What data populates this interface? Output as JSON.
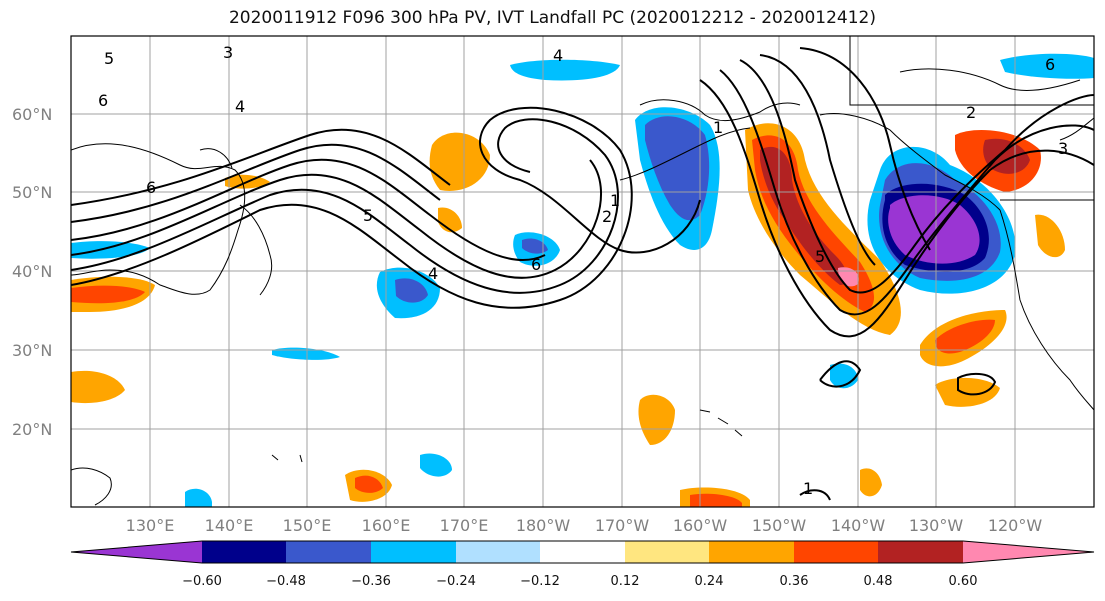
{
  "title": "2020011912 F096 300 hPa PV, IVT Landfall PC (2020012212 - 2020012412)",
  "lat_labels": [
    "20°N",
    "30°N",
    "40°N",
    "50°N",
    "60°N"
  ],
  "lon_labels": [
    "130°E",
    "140°E",
    "150°E",
    "160°E",
    "170°E",
    "180°W",
    "170°W",
    "160°W",
    "150°W",
    "140°W",
    "130°W",
    "120°W"
  ],
  "colorbar": {
    "ticks": [
      "−0.60",
      "−0.48",
      "−0.36",
      "−0.24",
      "−0.12",
      "0.12",
      "0.24",
      "0.36",
      "0.48",
      "0.60"
    ],
    "colors": [
      "#9a35d3",
      "#00008b",
      "#3a58cc",
      "#00bfff",
      "#b0e0ff",
      "#ffffff",
      "#ffe680",
      "#ffa500",
      "#ff4500",
      "#b22222",
      "#ff88b0"
    ]
  },
  "contour_labels": [
    "5",
    "3",
    "6",
    "4",
    "6",
    "5",
    "4",
    "6",
    "2",
    "1",
    "5",
    "2",
    "3",
    "1",
    "1",
    "4",
    "6"
  ],
  "colors": {
    "land_outline": "#000000",
    "grid": "#a0a0a0",
    "contour": "#000000"
  }
}
